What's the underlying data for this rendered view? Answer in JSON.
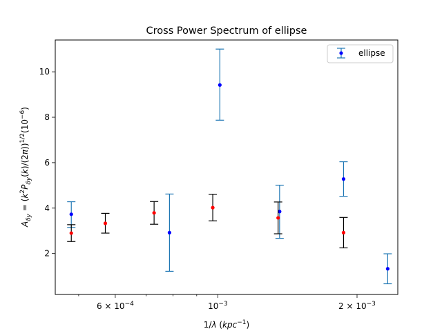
{
  "chart_data": {
    "type": "scatter",
    "title": "Cross Power Spectrum of ellipse",
    "xlabel": "1/λ (kpc⁻¹)",
    "ylabel": "A_δy = (k²P_δy(k)/(2π))^1/2 (10⁻⁶)",
    "x_scale": "log",
    "xlim": [
      0.000445,
      0.00245
    ],
    "ylim": [
      0.2,
      11.4
    ],
    "x_ticks": [
      {
        "value": 0.0006,
        "mantissa": "6",
        "exponent": "−4"
      },
      {
        "value": 0.001,
        "mantissa": "",
        "exponent": "−3"
      },
      {
        "value": 0.002,
        "mantissa": "2",
        "exponent": "−3"
      }
    ],
    "y_ticks": [
      2,
      4,
      6,
      8,
      10
    ],
    "grid": false,
    "legend_position": "top-right",
    "legend": [
      {
        "label": "ellipse",
        "series_index": 0
      }
    ],
    "series": [
      {
        "name": "ellipse",
        "marker_color": "#0000ff",
        "errorbar_color": "#1f77b4",
        "points": [
          {
            "x": 0.000482,
            "y": 3.73,
            "yerr_low": 0.58,
            "yerr_high": 0.55
          },
          {
            "x": 0.000786,
            "y": 2.92,
            "yerr_low": 1.7,
            "yerr_high": 1.7
          },
          {
            "x": 0.00101,
            "y": 9.42,
            "yerr_low": 1.55,
            "yerr_high": 1.58
          },
          {
            "x": 0.00136,
            "y": 3.85,
            "yerr_low": 1.18,
            "yerr_high": 1.16
          },
          {
            "x": 0.00187,
            "y": 5.28,
            "yerr_low": 0.76,
            "yerr_high": 0.76
          },
          {
            "x": 0.00233,
            "y": 1.33,
            "yerr_low": 0.66,
            "yerr_high": 0.66
          }
        ]
      },
      {
        "marker_color": "#ff0000",
        "errorbar_color": "#000000",
        "points": [
          {
            "x": 0.000482,
            "y": 2.9,
            "yerr_low": 0.37,
            "yerr_high": 0.37
          },
          {
            "x": 0.000571,
            "y": 3.33,
            "yerr_low": 0.43,
            "yerr_high": 0.44
          },
          {
            "x": 0.000728,
            "y": 3.79,
            "yerr_low": 0.5,
            "yerr_high": 0.5
          },
          {
            "x": 0.000975,
            "y": 4.02,
            "yerr_low": 0.58,
            "yerr_high": 0.59
          },
          {
            "x": 0.00135,
            "y": 3.57,
            "yerr_low": 0.7,
            "yerr_high": 0.7
          },
          {
            "x": 0.00187,
            "y": 2.92,
            "yerr_low": 0.67,
            "yerr_high": 0.67
          }
        ]
      }
    ]
  }
}
